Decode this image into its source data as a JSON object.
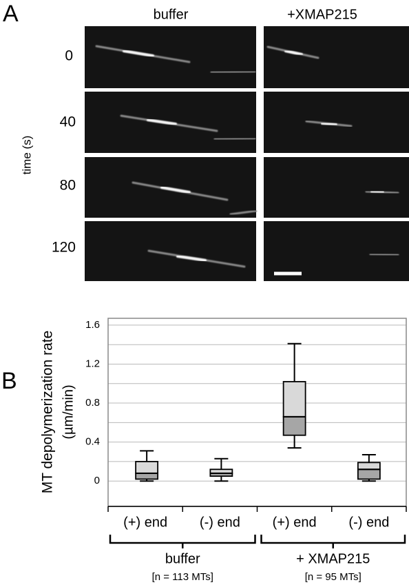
{
  "panel_a": {
    "label": "A",
    "columns": [
      "buffer",
      "+XMAP215"
    ],
    "times": [
      "0",
      "40",
      "80",
      "120"
    ],
    "time_label": "time (s)"
  },
  "chart_data": {
    "type": "box",
    "panel_label": "B",
    "y_label": [
      "MT depolymerization rate",
      "(µm/min)"
    ],
    "categories": [
      "(+) end",
      "(-) end",
      "(+) end",
      "(-) end"
    ],
    "groups": [
      {
        "name": "buffer",
        "note": "[n = 113 MTs]"
      },
      {
        "name": "+ XMAP215",
        "note": "[n = 95 MTs]"
      }
    ],
    "min": [
      0,
      0,
      0.34,
      0
    ],
    "q1": [
      0.02,
      0.05,
      0.47,
      0.02
    ],
    "median": [
      0.08,
      0.08,
      0.66,
      0.12
    ],
    "q3": [
      0.2,
      0.12,
      1.02,
      0.19
    ],
    "max": [
      0.31,
      0.23,
      1.41,
      0.27
    ],
    "colors": {
      "lower": "#a6a6a6",
      "upper": "#d9d9d9"
    },
    "ylim": [
      -0.26,
      1.67
    ],
    "yticks": [
      0,
      0.4,
      0.8,
      1.2,
      1.6
    ],
    "minor_yticks": [
      0.2,
      0.6,
      1.0,
      1.4
    ],
    "grid": true
  }
}
